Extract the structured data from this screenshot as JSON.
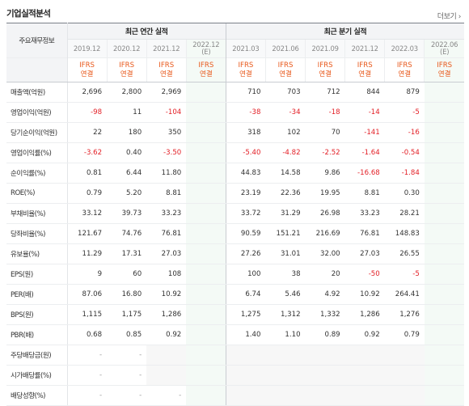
{
  "title": "기업실적분석",
  "more_link": "더보기",
  "header": {
    "label": "주요재무정보",
    "annual_group": "최근 연간 실적",
    "quarter_group": "최근 분기 실적",
    "annual_periods": [
      {
        "period": "2019.12",
        "note": ""
      },
      {
        "period": "2020.12",
        "note": ""
      },
      {
        "period": "2021.12",
        "note": ""
      },
      {
        "period": "2022.12",
        "note": "(E)"
      }
    ],
    "quarter_periods": [
      {
        "period": "2021.03",
        "note": ""
      },
      {
        "period": "2021.06",
        "note": ""
      },
      {
        "period": "2021.09",
        "note": ""
      },
      {
        "period": "2021.12",
        "note": ""
      },
      {
        "period": "2022.03",
        "note": ""
      },
      {
        "period": "2022.06",
        "note": "(E)"
      }
    ],
    "standard_top": "IFRS",
    "standard_bottom": "연결"
  },
  "rows": [
    {
      "label": "매출액(억원)",
      "annual": [
        "2,696",
        "2,800",
        "2,969",
        ""
      ],
      "quarter": [
        "710",
        "703",
        "712",
        "844",
        "879",
        ""
      ]
    },
    {
      "label": "영업이익(억원)",
      "annual": [
        "-98",
        "11",
        "-104",
        ""
      ],
      "quarter": [
        "-38",
        "-34",
        "-18",
        "-14",
        "-5",
        ""
      ]
    },
    {
      "label": "당기순이익(억원)",
      "annual": [
        "22",
        "180",
        "350",
        ""
      ],
      "quarter": [
        "318",
        "102",
        "70",
        "-141",
        "-16",
        ""
      ]
    },
    {
      "label": "영업이익률(%)",
      "annual": [
        "-3.62",
        "0.40",
        "-3.50",
        ""
      ],
      "quarter": [
        "-5.40",
        "-4.82",
        "-2.52",
        "-1.64",
        "-0.54",
        ""
      ]
    },
    {
      "label": "순이익률(%)",
      "annual": [
        "0.81",
        "6.44",
        "11.80",
        ""
      ],
      "quarter": [
        "44.83",
        "14.58",
        "9.86",
        "-16.68",
        "-1.84",
        ""
      ]
    },
    {
      "label": "ROE(%)",
      "annual": [
        "0.79",
        "5.20",
        "8.81",
        ""
      ],
      "quarter": [
        "23.19",
        "22.36",
        "19.95",
        "8.81",
        "0.30",
        ""
      ]
    },
    {
      "label": "부채비율(%)",
      "annual": [
        "33.12",
        "39.73",
        "33.23",
        ""
      ],
      "quarter": [
        "33.72",
        "31.29",
        "26.98",
        "33.23",
        "28.21",
        ""
      ]
    },
    {
      "label": "당좌비율(%)",
      "annual": [
        "121.67",
        "74.76",
        "76.81",
        ""
      ],
      "quarter": [
        "90.59",
        "151.21",
        "216.69",
        "76.81",
        "148.83",
        ""
      ]
    },
    {
      "label": "유보율(%)",
      "annual": [
        "11.29",
        "17.31",
        "27.03",
        ""
      ],
      "quarter": [
        "27.26",
        "31.01",
        "32.00",
        "27.03",
        "26.55",
        ""
      ]
    },
    {
      "label": "EPS(원)",
      "annual": [
        "9",
        "60",
        "108",
        ""
      ],
      "quarter": [
        "100",
        "38",
        "20",
        "-50",
        "-5",
        ""
      ]
    },
    {
      "label": "PER(배)",
      "annual": [
        "87.06",
        "16.80",
        "10.92",
        ""
      ],
      "quarter": [
        "6.74",
        "5.46",
        "4.92",
        "10.92",
        "264.41",
        ""
      ]
    },
    {
      "label": "BPS(원)",
      "annual": [
        "1,115",
        "1,175",
        "1,286",
        ""
      ],
      "quarter": [
        "1,275",
        "1,312",
        "1,332",
        "1,286",
        "1,276",
        ""
      ]
    },
    {
      "label": "PBR(배)",
      "annual": [
        "0.68",
        "0.85",
        "0.92",
        ""
      ],
      "quarter": [
        "1.40",
        "1.10",
        "0.89",
        "0.92",
        "0.79",
        ""
      ]
    },
    {
      "label": "주당배당금(원)",
      "annual": [
        "-",
        "-",
        "",
        ""
      ],
      "quarter": [
        "",
        "",
        "",
        "",
        "",
        ""
      ]
    },
    {
      "label": "시가배당률(%)",
      "annual": [
        "-",
        "-",
        "",
        ""
      ],
      "quarter": [
        "",
        "",
        "",
        "",
        "",
        ""
      ]
    },
    {
      "label": "배당성향(%)",
      "annual": [
        "-",
        "-",
        "-",
        ""
      ],
      "quarter": [
        "",
        "",
        "",
        "",
        "",
        ""
      ]
    }
  ],
  "colors": {
    "negative": "#e31f26",
    "ifrs": "#e8581b",
    "estimate_bg": "#f4faf6",
    "empty_bg": "#f7f7f7"
  }
}
